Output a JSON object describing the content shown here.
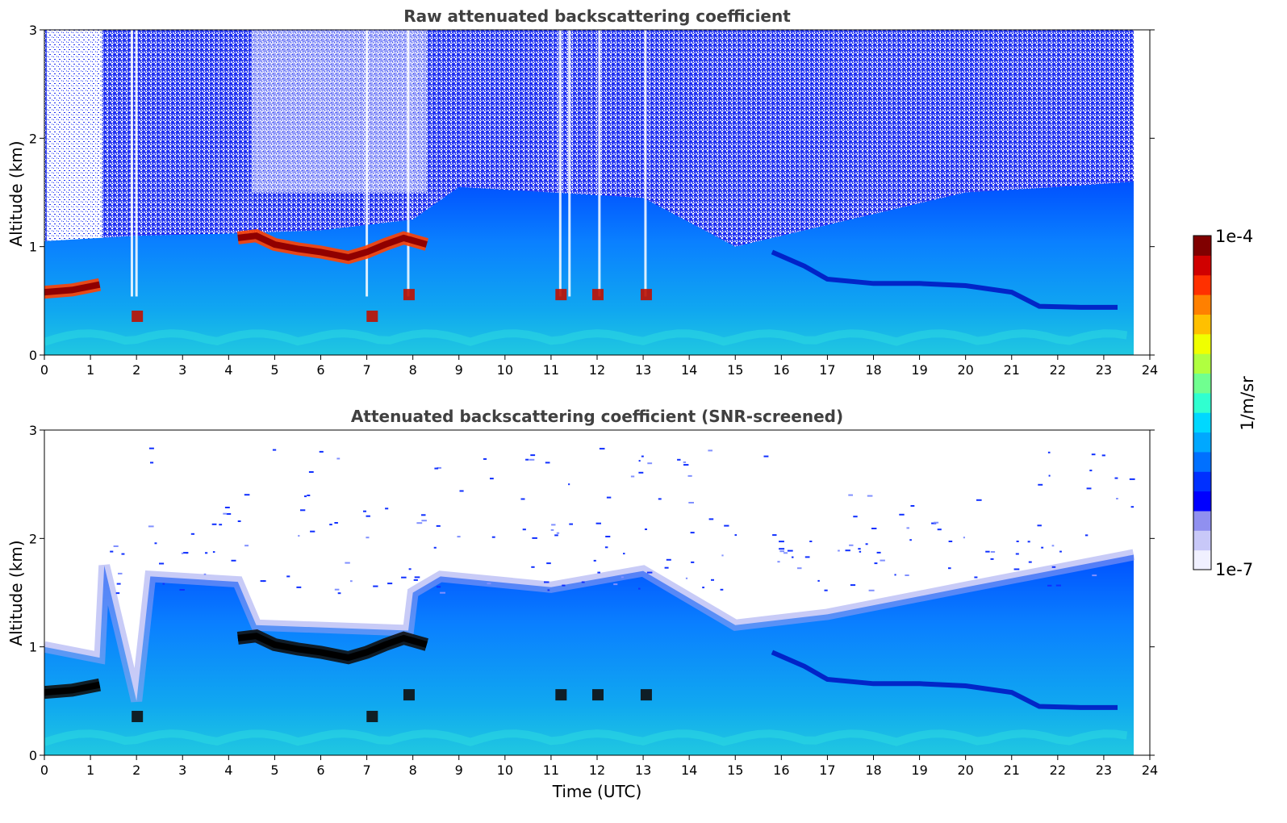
{
  "chart_data": [
    {
      "type": "heatmap",
      "title": "Raw attenuated backscattering coefficient",
      "xlabel": "",
      "ylabel": "Altitude (km)",
      "xlim": [
        0,
        24
      ],
      "ylim": [
        0,
        3
      ],
      "x_ticks": [
        "0",
        "1",
        "2",
        "3",
        "4",
        "5",
        "6",
        "7",
        "8",
        "9",
        "10",
        "11",
        "12",
        "13",
        "14",
        "15",
        "16",
        "17",
        "18",
        "19",
        "20",
        "21",
        "22",
        "23",
        "24"
      ],
      "y_ticks": [
        "0",
        "1",
        "2",
        "3"
      ],
      "data_extent_hours": [
        0,
        23.65
      ],
      "colorscale": "jet (log)",
      "features": {
        "cloud_base_km": [
          {
            "t": 0.0,
            "z": 0.58
          },
          {
            "t": 0.6,
            "z": 0.6
          },
          {
            "t": 1.2,
            "z": 0.65
          },
          {
            "t": 4.2,
            "z": 1.08
          },
          {
            "t": 4.6,
            "z": 1.1
          },
          {
            "t": 5.0,
            "z": 1.02
          },
          {
            "t": 5.5,
            "z": 0.98
          },
          {
            "t": 6.0,
            "z": 0.95
          },
          {
            "t": 6.6,
            "z": 0.9
          },
          {
            "t": 7.0,
            "z": 0.95
          },
          {
            "t": 7.4,
            "z": 1.02
          },
          {
            "t": 7.8,
            "z": 1.08
          },
          {
            "t": 8.3,
            "z": 1.02
          }
        ],
        "boundary_layer_top_km": [
          {
            "t": 0.0,
            "z": 1.05
          },
          {
            "t": 2.0,
            "z": 1.1
          },
          {
            "t": 4.0,
            "z": 1.12
          },
          {
            "t": 6.0,
            "z": 1.15
          },
          {
            "t": 8.0,
            "z": 1.25
          },
          {
            "t": 9.0,
            "z": 1.55
          },
          {
            "t": 11.0,
            "z": 1.5
          },
          {
            "t": 13.0,
            "z": 1.45
          },
          {
            "t": 15.0,
            "z": 1.0
          },
          {
            "t": 16.5,
            "z": 1.15
          },
          {
            "t": 18.0,
            "z": 1.3
          },
          {
            "t": 20.0,
            "z": 1.5
          },
          {
            "t": 22.0,
            "z": 1.55
          },
          {
            "t": 23.65,
            "z": 1.6
          }
        ],
        "residual_layer_km": [
          {
            "t": 15.8,
            "z": 0.95
          },
          {
            "t": 16.5,
            "z": 0.82
          },
          {
            "t": 17.0,
            "z": 0.7
          },
          {
            "t": 18.0,
            "z": 0.66
          },
          {
            "t": 19.0,
            "z": 0.66
          },
          {
            "t": 20.0,
            "z": 0.64
          },
          {
            "t": 21.0,
            "z": 0.58
          },
          {
            "t": 21.6,
            "z": 0.45
          },
          {
            "t": 22.5,
            "z": 0.44
          },
          {
            "t": 23.3,
            "z": 0.44
          }
        ],
        "precipitation_gaps_hours": [
          1.9,
          2.0,
          7.0,
          7.9,
          11.2,
          11.4,
          12.05,
          13.05
        ]
      }
    },
    {
      "type": "heatmap",
      "title": "Attenuated backscattering coefficient (SNR-screened)",
      "xlabel": "Time (UTC)",
      "ylabel": "Altitude (km)",
      "xlim": [
        0,
        24
      ],
      "ylim": [
        0,
        3
      ],
      "x_ticks": [
        "0",
        "1",
        "2",
        "3",
        "4",
        "5",
        "6",
        "7",
        "8",
        "9",
        "10",
        "11",
        "12",
        "13",
        "14",
        "15",
        "16",
        "17",
        "18",
        "19",
        "20",
        "21",
        "22",
        "23",
        "24"
      ],
      "y_ticks": [
        "0",
        "1",
        "2",
        "3"
      ],
      "data_extent_hours": [
        0,
        23.65
      ],
      "colorscale": "jet (log)",
      "features": {
        "screened_top_km": [
          {
            "t": 0.0,
            "z": 1.0
          },
          {
            "t": 1.2,
            "z": 0.9
          },
          {
            "t": 1.3,
            "z": 1.75
          },
          {
            "t": 2.0,
            "z": 0.5
          },
          {
            "t": 2.3,
            "z": 1.65
          },
          {
            "t": 4.2,
            "z": 1.6
          },
          {
            "t": 4.6,
            "z": 1.2
          },
          {
            "t": 7.9,
            "z": 1.15
          },
          {
            "t": 8.0,
            "z": 1.5
          },
          {
            "t": 8.6,
            "z": 1.65
          },
          {
            "t": 11.0,
            "z": 1.55
          },
          {
            "t": 13.0,
            "z": 1.7
          },
          {
            "t": 15.0,
            "z": 1.2
          },
          {
            "t": 17.0,
            "z": 1.3
          },
          {
            "t": 20.0,
            "z": 1.55
          },
          {
            "t": 23.65,
            "z": 1.85
          }
        ],
        "residual_layer_km": [
          {
            "t": 15.8,
            "z": 0.95
          },
          {
            "t": 16.5,
            "z": 0.82
          },
          {
            "t": 17.0,
            "z": 0.7
          },
          {
            "t": 18.0,
            "z": 0.66
          },
          {
            "t": 19.0,
            "z": 0.66
          },
          {
            "t": 20.0,
            "z": 0.64
          },
          {
            "t": 21.0,
            "z": 0.58
          },
          {
            "t": 21.6,
            "z": 0.45
          },
          {
            "t": 22.5,
            "z": 0.44
          },
          {
            "t": 23.3,
            "z": 0.44
          }
        ]
      }
    }
  ],
  "colorbar": {
    "label": "1/m/sr",
    "max_label": "1e-4",
    "min_label": "1e-7",
    "stops": [
      "#f0f0ff",
      "#c8c8f8",
      "#9090f0",
      "#0000ff",
      "#0030ff",
      "#0070ff",
      "#00a8ff",
      "#00d8ff",
      "#30ffd0",
      "#70ff90",
      "#b0ff40",
      "#f0ff00",
      "#ffc000",
      "#ff8000",
      "#ff3000",
      "#d00000",
      "#800000"
    ]
  }
}
